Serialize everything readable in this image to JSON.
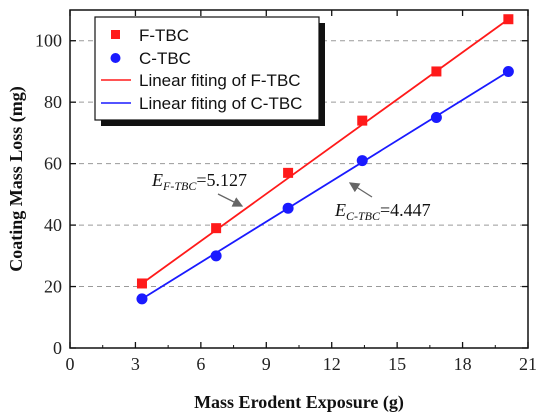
{
  "chart_data": {
    "type": "scatter",
    "title": "",
    "xlabel": "Mass Erodent Exposure (g)",
    "ylabel": "Coating Mass Loss (mg)",
    "xlim": [
      0,
      21
    ],
    "ylim": [
      0,
      110
    ],
    "x_ticks": [
      "0",
      "3",
      "6",
      "9",
      "12",
      "15",
      "18",
      "21"
    ],
    "y_ticks": [
      "0",
      "20",
      "40",
      "60",
      "80",
      "100"
    ],
    "grid": "horizontal dashed",
    "legend_position": "top-left",
    "series": [
      {
        "name": "F-TBC",
        "marker": "square",
        "color": "#ff1a1a",
        "x": [
          3.3,
          6.7,
          10.0,
          13.4,
          16.8,
          20.1
        ],
        "y": [
          21,
          39,
          57,
          74,
          90,
          107
        ]
      },
      {
        "name": "C-TBC",
        "marker": "circle",
        "color": "#1a1aff",
        "x": [
          3.3,
          6.7,
          10.0,
          13.4,
          16.8,
          20.1
        ],
        "y": [
          16,
          30,
          45.5,
          61,
          75,
          90
        ]
      }
    ],
    "fits": [
      {
        "name": "Linear fiting of F-TBC",
        "color": "#ff1a1a",
        "x_range": [
          3.3,
          20.1
        ],
        "y_range": [
          21,
          107
        ]
      },
      {
        "name": "Linear fiting of C-TBC",
        "color": "#1a1aff",
        "x_range": [
          3.3,
          20.1
        ],
        "y_range": [
          16,
          90
        ]
      }
    ],
    "annotations": [
      {
        "symbol": "E",
        "subscript": "F-TBC",
        "value": "=5.127",
        "points_to": "Linear fiting of F-TBC"
      },
      {
        "symbol": "E",
        "subscript": "C-TBC",
        "value": "=4.447",
        "points_to": "Linear fiting of C-TBC"
      }
    ]
  }
}
